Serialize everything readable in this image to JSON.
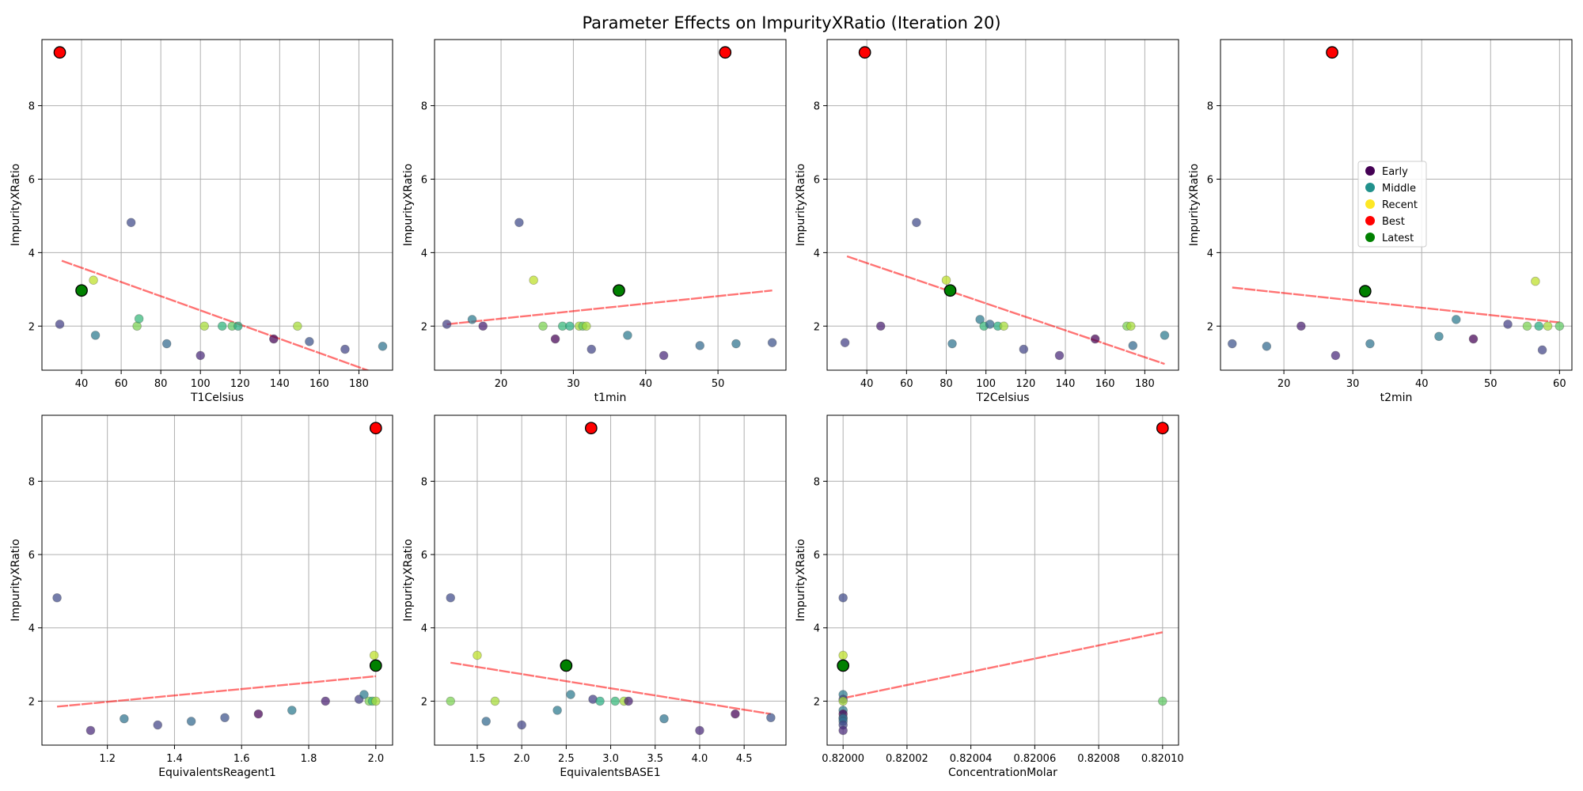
{
  "figure": {
    "title": "Parameter Effects on ImpurityXRatio (Iteration 20)"
  },
  "colors": {
    "early": "#440154",
    "middle": "#21918c",
    "recent": "#fde725",
    "best": "#ff0000",
    "latest": "#008000",
    "trend": "#ff0000",
    "grid": "#b0b0b0"
  },
  "legend": {
    "placement": "center-left of fourth panel",
    "items": [
      {
        "label": "Early",
        "color": "#440154"
      },
      {
        "label": "Middle",
        "color": "#21918c"
      },
      {
        "label": "Recent",
        "color": "#fde725"
      },
      {
        "label": "Best",
        "color": "#ff0000"
      },
      {
        "label": "Latest",
        "color": "#008000"
      }
    ]
  },
  "chart_data": [
    {
      "type": "scatter",
      "xlabel": "T1Celsius",
      "ylabel": "ImpurityXRatio",
      "xlim": [
        20,
        197
      ],
      "ylim": [
        0.8,
        9.8
      ],
      "xticks": [
        "40",
        "60",
        "80",
        "100",
        "120",
        "140",
        "160",
        "180"
      ],
      "yticks": [
        "2",
        "4",
        "6",
        "8"
      ],
      "grid": true,
      "trend": {
        "x": [
          30,
          192
        ],
        "y": [
          3.78,
          0.65
        ]
      },
      "points": [
        {
          "x": 29,
          "y": 2.05,
          "color": "#433e85"
        },
        {
          "x": 47,
          "y": 1.75,
          "color": "#2a788e"
        },
        {
          "x": 65,
          "y": 4.82,
          "color": "#3e4a89"
        },
        {
          "x": 68,
          "y": 2.0,
          "color": "#7ad151"
        },
        {
          "x": 69,
          "y": 2.2,
          "color": "#35b779"
        },
        {
          "x": 83,
          "y": 1.52,
          "color": "#31688e"
        },
        {
          "x": 46,
          "y": 3.25,
          "color": "#bddf26"
        },
        {
          "x": 100,
          "y": 1.2,
          "color": "#482878"
        },
        {
          "x": 102,
          "y": 2.0,
          "color": "#a5db36"
        },
        {
          "x": 111,
          "y": 2.0,
          "color": "#2fb47c"
        },
        {
          "x": 116,
          "y": 2.0,
          "color": "#5ec962"
        },
        {
          "x": 119,
          "y": 2.0,
          "color": "#27ad81"
        },
        {
          "x": 137,
          "y": 1.65,
          "color": "#440154"
        },
        {
          "x": 149,
          "y": 2.0,
          "color": "#a5db36"
        },
        {
          "x": 155,
          "y": 1.58,
          "color": "#3b528b"
        },
        {
          "x": 173,
          "y": 1.37,
          "color": "#414487"
        },
        {
          "x": 192,
          "y": 1.45,
          "color": "#2c728e"
        }
      ],
      "latest": {
        "x": 40,
        "y": 2.97
      },
      "best": {
        "x": 29,
        "y": 9.45
      }
    },
    {
      "type": "scatter",
      "xlabel": "t1min",
      "ylabel": "ImpurityXRatio",
      "xlim": [
        10.8,
        59.4
      ],
      "ylim": [
        0.8,
        9.8
      ],
      "xticks": [
        "20",
        "30",
        "40",
        "50"
      ],
      "yticks": [
        "2",
        "4",
        "6",
        "8"
      ],
      "grid": true,
      "trend": {
        "x": [
          12.5,
          57.5
        ],
        "y": [
          2.05,
          2.97
        ]
      },
      "points": [
        {
          "x": 12.5,
          "y": 2.05,
          "color": "#433e85"
        },
        {
          "x": 16,
          "y": 2.18,
          "color": "#2a788e"
        },
        {
          "x": 17.5,
          "y": 2.0,
          "color": "#481f70"
        },
        {
          "x": 22.5,
          "y": 4.82,
          "color": "#3e4a89"
        },
        {
          "x": 24.5,
          "y": 3.25,
          "color": "#bddf26"
        },
        {
          "x": 25.8,
          "y": 2.0,
          "color": "#7ad151"
        },
        {
          "x": 27.5,
          "y": 1.65,
          "color": "#440154"
        },
        {
          "x": 28.5,
          "y": 2.0,
          "color": "#35b779"
        },
        {
          "x": 29.5,
          "y": 2.0,
          "color": "#27ad81"
        },
        {
          "x": 30.8,
          "y": 2.0,
          "color": "#a5db36"
        },
        {
          "x": 31.3,
          "y": 2.0,
          "color": "#5ec962"
        },
        {
          "x": 31.8,
          "y": 2.0,
          "color": "#a5db36"
        },
        {
          "x": 32.5,
          "y": 1.37,
          "color": "#414487"
        },
        {
          "x": 37.5,
          "y": 1.75,
          "color": "#2a788e"
        },
        {
          "x": 42.5,
          "y": 1.2,
          "color": "#482878"
        },
        {
          "x": 47.5,
          "y": 1.47,
          "color": "#31688e"
        },
        {
          "x": 52.5,
          "y": 1.52,
          "color": "#2c728e"
        },
        {
          "x": 57.5,
          "y": 1.55,
          "color": "#3b528b"
        }
      ],
      "latest": {
        "x": 36.3,
        "y": 2.97
      },
      "best": {
        "x": 51,
        "y": 9.45
      }
    },
    {
      "type": "scatter",
      "xlabel": "T2Celsius",
      "ylabel": "ImpurityXRatio",
      "xlim": [
        20,
        197
      ],
      "ylim": [
        0.8,
        9.8
      ],
      "xticks": [
        "40",
        "60",
        "80",
        "100",
        "120",
        "140",
        "160",
        "180"
      ],
      "yticks": [
        "2",
        "4",
        "6",
        "8"
      ],
      "grid": true,
      "trend": {
        "x": [
          30,
          190
        ],
        "y": [
          3.9,
          0.97
        ]
      },
      "points": [
        {
          "x": 29,
          "y": 1.55,
          "color": "#433e85"
        },
        {
          "x": 47,
          "y": 2.0,
          "color": "#481f70"
        },
        {
          "x": 65,
          "y": 4.82,
          "color": "#3e4a89"
        },
        {
          "x": 80,
          "y": 3.25,
          "color": "#bddf26"
        },
        {
          "x": 83,
          "y": 1.52,
          "color": "#2c728e"
        },
        {
          "x": 97,
          "y": 2.18,
          "color": "#2a788e"
        },
        {
          "x": 99,
          "y": 2.0,
          "color": "#35b779"
        },
        {
          "x": 102,
          "y": 2.05,
          "color": "#31688e"
        },
        {
          "x": 106,
          "y": 2.0,
          "color": "#27ad81"
        },
        {
          "x": 109,
          "y": 2.0,
          "color": "#a5db36"
        },
        {
          "x": 119,
          "y": 1.37,
          "color": "#414487"
        },
        {
          "x": 137,
          "y": 1.2,
          "color": "#482878"
        },
        {
          "x": 155,
          "y": 1.65,
          "color": "#440154"
        },
        {
          "x": 171,
          "y": 2.0,
          "color": "#7ad151"
        },
        {
          "x": 173,
          "y": 2.0,
          "color": "#a5db36"
        },
        {
          "x": 174,
          "y": 1.47,
          "color": "#31688e"
        },
        {
          "x": 190,
          "y": 1.75,
          "color": "#2a788e"
        }
      ],
      "latest": {
        "x": 82,
        "y": 2.97
      },
      "best": {
        "x": 39,
        "y": 9.45
      }
    },
    {
      "type": "scatter",
      "xlabel": "t2min",
      "ylabel": "ImpurityXRatio",
      "xlim": [
        10.8,
        61.8
      ],
      "ylim": [
        0.8,
        9.8
      ],
      "xticks": [
        "20",
        "30",
        "40",
        "50",
        "60"
      ],
      "yticks": [
        "2",
        "4",
        "6",
        "8"
      ],
      "grid": true,
      "trend": {
        "x": [
          12.5,
          60
        ],
        "y": [
          3.05,
          2.1
        ]
      },
      "points": [
        {
          "x": 12.5,
          "y": 1.52,
          "color": "#3b528b"
        },
        {
          "x": 17.5,
          "y": 1.45,
          "color": "#31688e"
        },
        {
          "x": 22.5,
          "y": 2.0,
          "color": "#481f70"
        },
        {
          "x": 27.5,
          "y": 1.2,
          "color": "#482878"
        },
        {
          "x": 32.5,
          "y": 1.52,
          "color": "#2c728e"
        },
        {
          "x": 42.5,
          "y": 1.72,
          "color": "#2a788e"
        },
        {
          "x": 45,
          "y": 2.18,
          "color": "#2a788e"
        },
        {
          "x": 47.5,
          "y": 1.65,
          "color": "#440154"
        },
        {
          "x": 52.5,
          "y": 2.05,
          "color": "#433e85"
        },
        {
          "x": 55.3,
          "y": 2.0,
          "color": "#7ad151"
        },
        {
          "x": 56.5,
          "y": 3.22,
          "color": "#bddf26"
        },
        {
          "x": 57,
          "y": 2.0,
          "color": "#27ad81"
        },
        {
          "x": 57.5,
          "y": 1.35,
          "color": "#414487"
        },
        {
          "x": 58.3,
          "y": 2.0,
          "color": "#a5db36"
        },
        {
          "x": 60,
          "y": 2.0,
          "color": "#5ec962"
        }
      ],
      "latest": {
        "x": 31.8,
        "y": 2.95
      },
      "best": {
        "x": 27,
        "y": 9.45
      }
    },
    {
      "type": "scatter",
      "xlabel": "EquivalentsReagent1",
      "ylabel": "ImpurityXRatio",
      "xlim": [
        1.005,
        2.05
      ],
      "ylim": [
        0.8,
        9.8
      ],
      "xticks": [
        "1.2",
        "1.4",
        "1.6",
        "1.8",
        "2.0"
      ],
      "yticks": [
        "2",
        "4",
        "6",
        "8"
      ],
      "grid": true,
      "trend": {
        "x": [
          1.05,
          2.0
        ],
        "y": [
          1.85,
          2.68
        ]
      },
      "points": [
        {
          "x": 1.05,
          "y": 4.82,
          "color": "#3e4a89"
        },
        {
          "x": 1.15,
          "y": 1.2,
          "color": "#482878"
        },
        {
          "x": 1.25,
          "y": 1.52,
          "color": "#2c728e"
        },
        {
          "x": 1.35,
          "y": 1.35,
          "color": "#414487"
        },
        {
          "x": 1.45,
          "y": 1.45,
          "color": "#31688e"
        },
        {
          "x": 1.55,
          "y": 1.55,
          "color": "#3b528b"
        },
        {
          "x": 1.65,
          "y": 1.65,
          "color": "#440154"
        },
        {
          "x": 1.75,
          "y": 1.75,
          "color": "#2a788e"
        },
        {
          "x": 1.85,
          "y": 2.0,
          "color": "#481f70"
        },
        {
          "x": 1.95,
          "y": 2.05,
          "color": "#433e85"
        },
        {
          "x": 1.965,
          "y": 2.18,
          "color": "#2a788e"
        },
        {
          "x": 1.98,
          "y": 2.0,
          "color": "#7ad151"
        },
        {
          "x": 1.99,
          "y": 2.0,
          "color": "#35b779"
        },
        {
          "x": 1.995,
          "y": 3.25,
          "color": "#bddf26"
        },
        {
          "x": 2.0,
          "y": 2.0,
          "color": "#a5db36"
        }
      ],
      "latest": {
        "x": 2.0,
        "y": 2.97
      },
      "best": {
        "x": 2.0,
        "y": 9.45
      }
    },
    {
      "type": "scatter",
      "xlabel": "EquivalentsBASE1",
      "ylabel": "ImpurityXRatio",
      "xlim": [
        1.02,
        4.97
      ],
      "ylim": [
        0.8,
        9.8
      ],
      "xticks": [
        "1.5",
        "2.0",
        "2.5",
        "3.0",
        "3.5",
        "4.0",
        "4.5"
      ],
      "yticks": [
        "2",
        "4",
        "6",
        "8"
      ],
      "grid": true,
      "trend": {
        "x": [
          1.2,
          4.8
        ],
        "y": [
          3.05,
          1.65
        ]
      },
      "points": [
        {
          "x": 1.2,
          "y": 4.82,
          "color": "#3e4a89"
        },
        {
          "x": 1.2,
          "y": 2.0,
          "color": "#7ad151"
        },
        {
          "x": 1.5,
          "y": 3.25,
          "color": "#bddf26"
        },
        {
          "x": 1.6,
          "y": 1.45,
          "color": "#31688e"
        },
        {
          "x": 1.7,
          "y": 2.0,
          "color": "#a5db36"
        },
        {
          "x": 2.0,
          "y": 1.35,
          "color": "#414487"
        },
        {
          "x": 2.4,
          "y": 1.75,
          "color": "#2a788e"
        },
        {
          "x": 2.55,
          "y": 2.18,
          "color": "#2a788e"
        },
        {
          "x": 2.8,
          "y": 2.05,
          "color": "#433e85"
        },
        {
          "x": 2.88,
          "y": 2.0,
          "color": "#27ad81"
        },
        {
          "x": 3.05,
          "y": 2.0,
          "color": "#35b779"
        },
        {
          "x": 3.15,
          "y": 2.0,
          "color": "#a5db36"
        },
        {
          "x": 3.2,
          "y": 2.0,
          "color": "#481f70"
        },
        {
          "x": 3.6,
          "y": 1.52,
          "color": "#2c728e"
        },
        {
          "x": 4.0,
          "y": 1.2,
          "color": "#482878"
        },
        {
          "x": 4.4,
          "y": 1.65,
          "color": "#440154"
        },
        {
          "x": 4.8,
          "y": 1.55,
          "color": "#3b528b"
        }
      ],
      "latest": {
        "x": 2.5,
        "y": 2.97
      },
      "best": {
        "x": 2.78,
        "y": 9.45
      }
    },
    {
      "type": "scatter",
      "xlabel": "ConcentrationMolar",
      "ylabel": "ImpurityXRatio",
      "xlim": [
        0.819995,
        0.820105
      ],
      "ylim": [
        0.8,
        9.8
      ],
      "xticks": [
        "0.82000",
        "0.82002",
        "0.82004",
        "0.82006",
        "0.82008",
        "0.82010"
      ],
      "yticks": [
        "2",
        "4",
        "6",
        "8"
      ],
      "grid": true,
      "trend": {
        "x": [
          0.82,
          0.8201
        ],
        "y": [
          2.08,
          3.88
        ]
      },
      "points": [
        {
          "x": 0.82,
          "y": 4.82,
          "color": "#3e4a89"
        },
        {
          "x": 0.82,
          "y": 3.25,
          "color": "#bddf26"
        },
        {
          "x": 0.82,
          "y": 2.18,
          "color": "#2a788e"
        },
        {
          "x": 0.82,
          "y": 2.05,
          "color": "#433e85"
        },
        {
          "x": 0.82,
          "y": 2.0,
          "color": "#a5db36"
        },
        {
          "x": 0.82,
          "y": 1.75,
          "color": "#2a788e"
        },
        {
          "x": 0.82,
          "y": 1.65,
          "color": "#440154"
        },
        {
          "x": 0.82,
          "y": 1.55,
          "color": "#3b528b"
        },
        {
          "x": 0.82,
          "y": 1.52,
          "color": "#2c728e"
        },
        {
          "x": 0.82,
          "y": 1.45,
          "color": "#31688e"
        },
        {
          "x": 0.82,
          "y": 1.35,
          "color": "#414487"
        },
        {
          "x": 0.82,
          "y": 1.2,
          "color": "#482878"
        },
        {
          "x": 0.8201,
          "y": 2.0,
          "color": "#5ec962"
        }
      ],
      "latest": {
        "x": 0.82,
        "y": 2.97
      },
      "best": {
        "x": 0.8201,
        "y": 9.45
      }
    }
  ]
}
